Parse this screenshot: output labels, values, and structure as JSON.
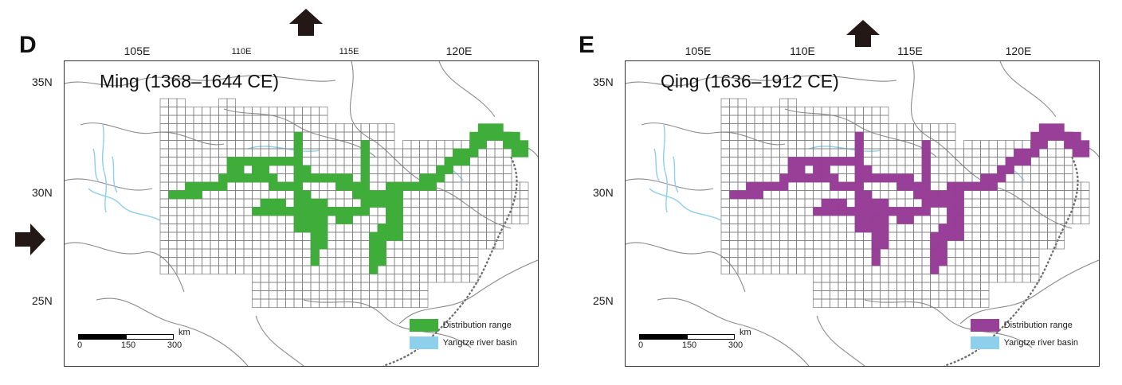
{
  "arrows": [
    {
      "name": "north-arrow-left",
      "dir": "up"
    },
    {
      "name": "east-arrow-left",
      "dir": "right"
    },
    {
      "name": "north-arrow-right",
      "dir": "up"
    }
  ],
  "axes": {
    "lon_ticks": [
      "105E",
      "110E",
      "115E",
      "120E"
    ],
    "lat_ticks": [
      "35N",
      "30N",
      "25N"
    ]
  },
  "legend": {
    "distribution": "Distribution range",
    "basin": "Yangtze river basin",
    "basin_color": "#8ecfec"
  },
  "scale": {
    "unit": "km",
    "ticks": [
      "0",
      "150",
      "300"
    ]
  },
  "panels": [
    {
      "id": "D",
      "letter": "D",
      "dynasty": "Ming (1368–1644 CE)",
      "color": "#3fad3a"
    },
    {
      "id": "E",
      "letter": "E",
      "dynasty": "Qing (1636–1912 CE)",
      "color": "#983f98"
    }
  ]
}
